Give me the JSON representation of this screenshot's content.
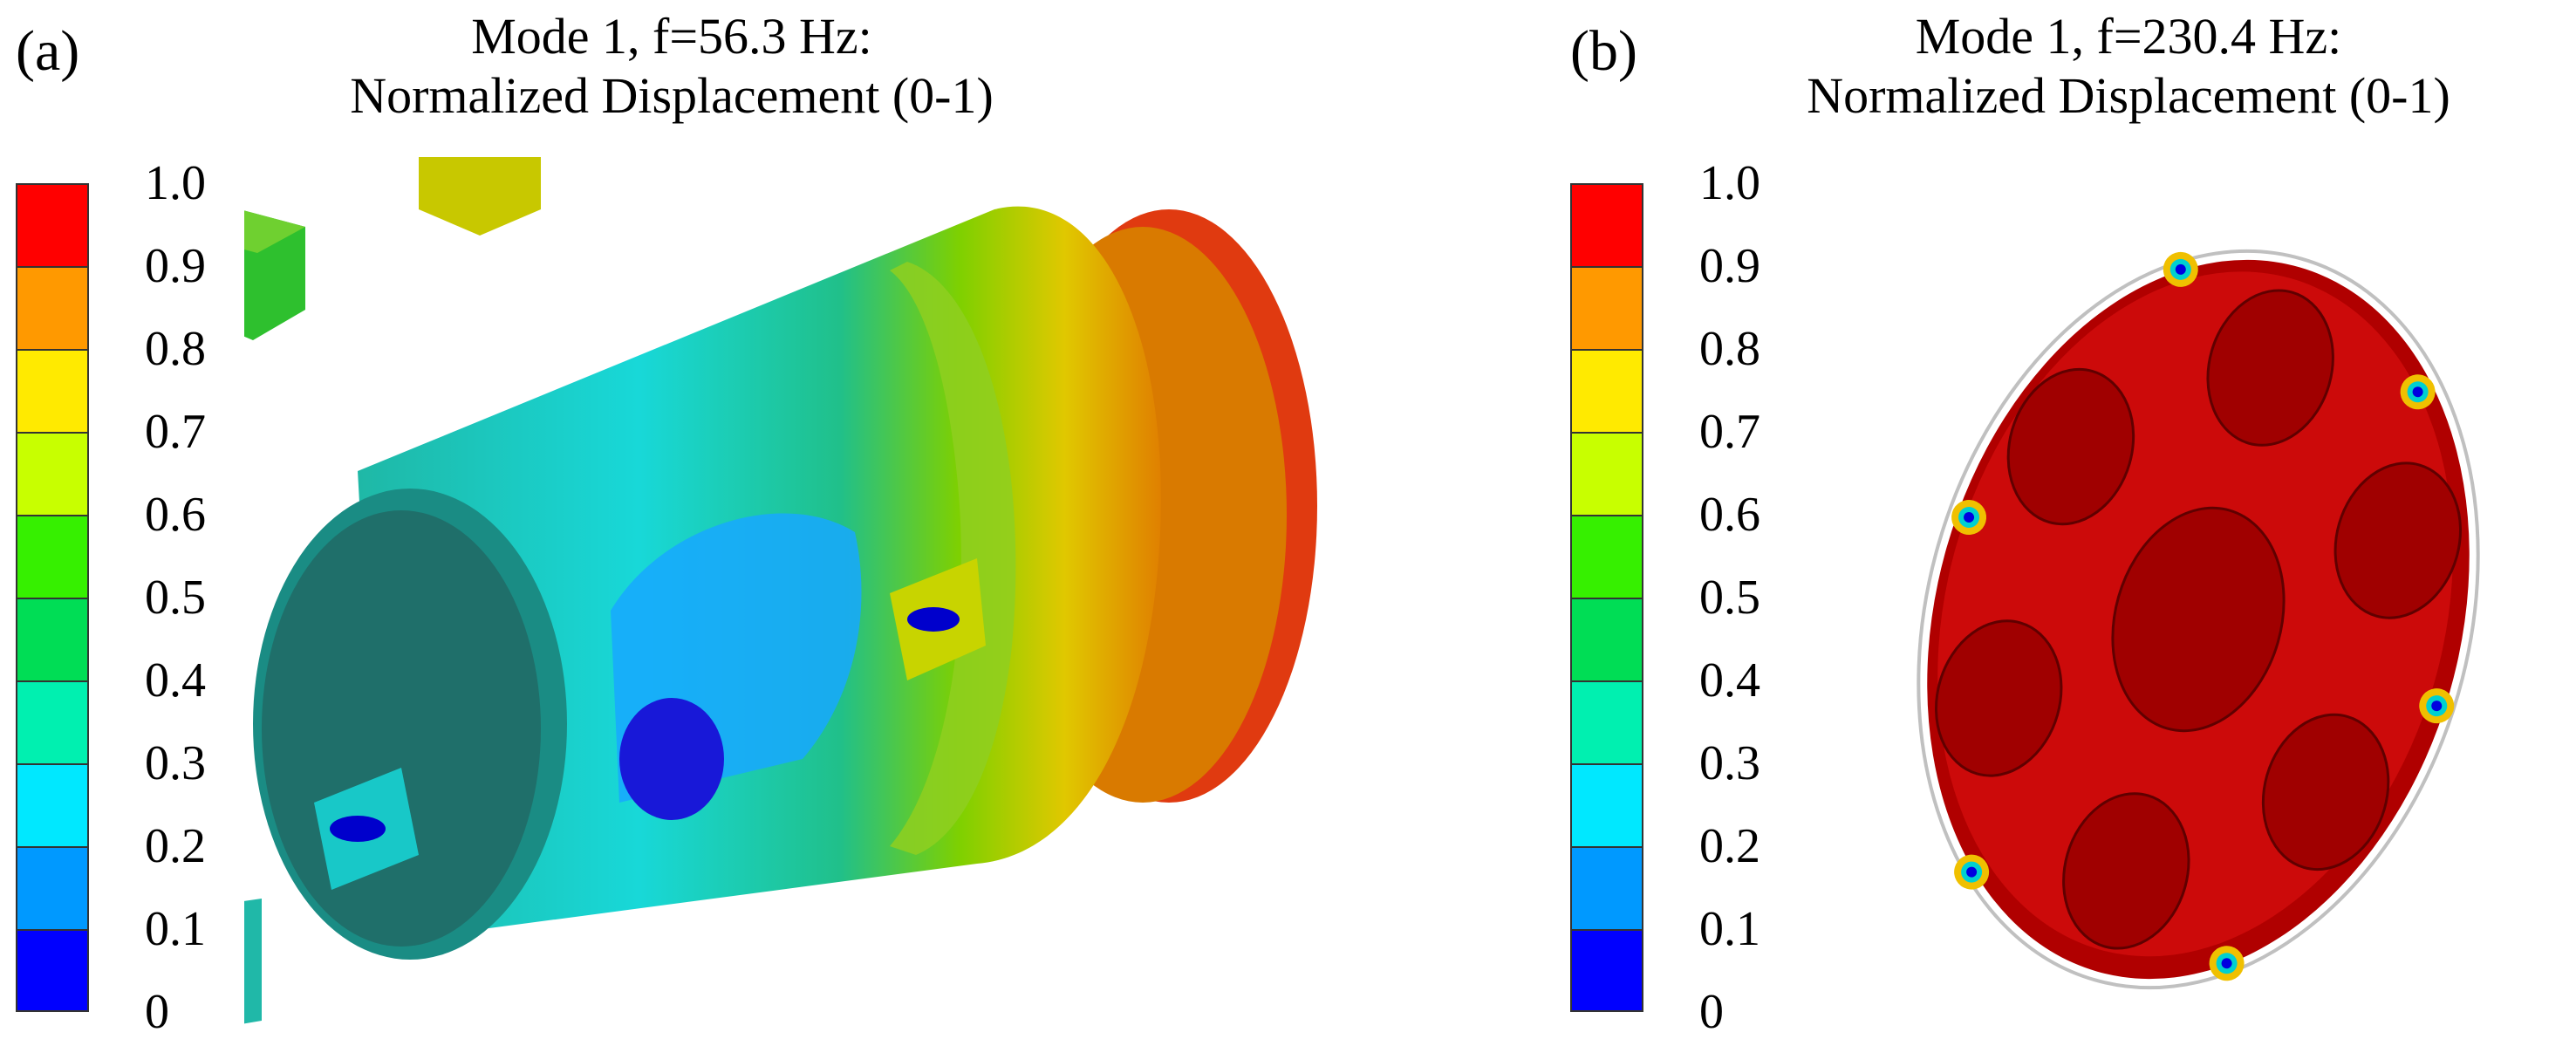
{
  "panel_a": {
    "label": "(a)",
    "title_line1": "Mode 1, f=56.3 Hz:",
    "title_line2": "Normalized Displacement (0-1)"
  },
  "panel_b": {
    "label": "(b)",
    "title_line1": "Mode 1, f=230.4 Hz:",
    "title_line2": "Normalized Displacement (0-1)"
  },
  "legend": {
    "ticks": [
      "1.0",
      "0.9",
      "0.8",
      "0.7",
      "0.6",
      "0.5",
      "0.4",
      "0.3",
      "0.2",
      "0.1",
      "0"
    ],
    "colors": [
      "#ff0000",
      "#ff9900",
      "#ffea00",
      "#c8ff00",
      "#36f000",
      "#00dd55",
      "#00f0b0",
      "#00e8ff",
      "#0099ff",
      "#0000ff"
    ]
  }
}
